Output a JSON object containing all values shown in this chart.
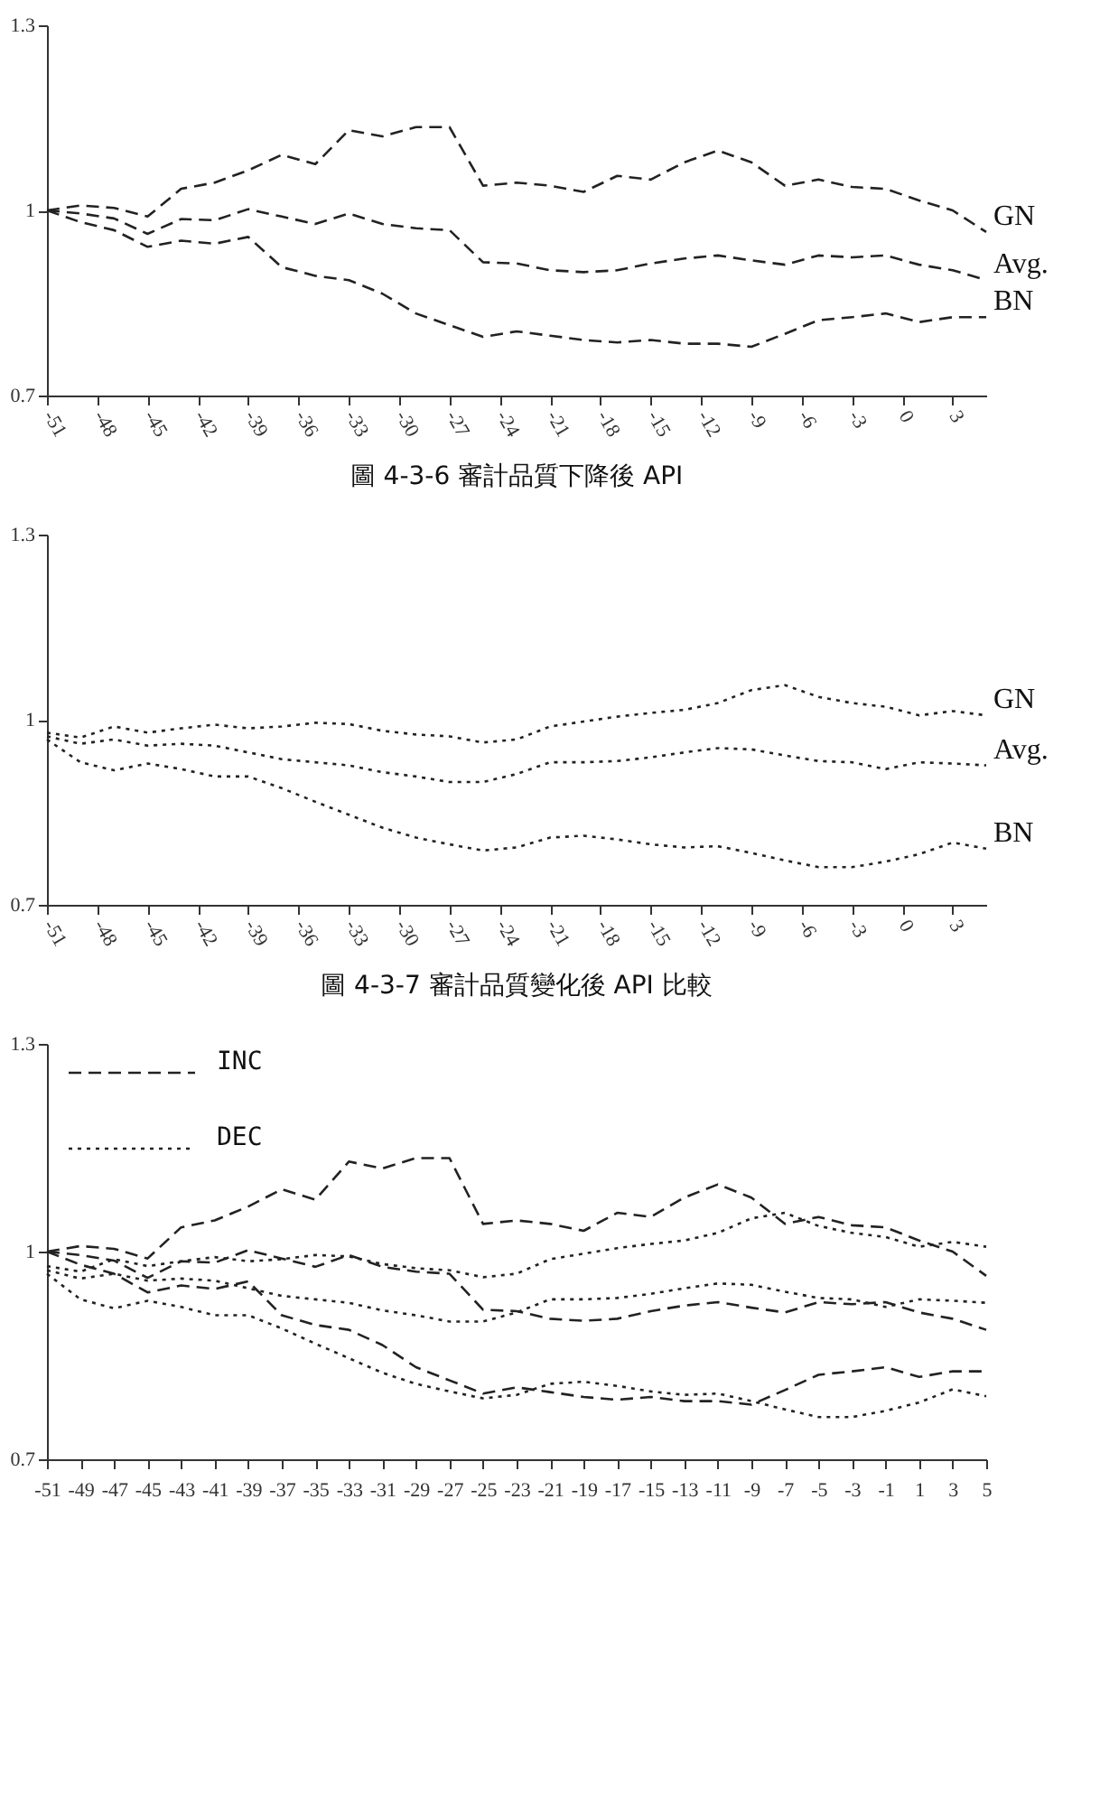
{
  "chart_data": [
    {
      "type": "line",
      "title": "圖 4-3-6 審計品質下降後 API",
      "x": [
        -51,
        -49,
        -47,
        -45,
        -43,
        -41,
        -39,
        -37,
        -35,
        -33,
        -31,
        -29,
        -27,
        -25,
        -23,
        -21,
        -19,
        -17,
        -15,
        -13,
        -11,
        -9,
        -7,
        -5,
        -3,
        -1,
        1,
        3,
        5
      ],
      "xlim": [
        -51,
        5
      ],
      "xticks": [
        -51,
        -48,
        -45,
        -42,
        -39,
        -36,
        -33,
        -30,
        -27,
        -24,
        -21,
        -18,
        -15,
        -12,
        -9,
        -6,
        -3,
        0,
        3
      ],
      "ylim": [
        0.7,
        1.3
      ],
      "yticks": [
        0.7,
        1,
        1.3
      ],
      "line_style": "dashed",
      "marker": "none",
      "grid": false,
      "series": [
        {
          "name": "GN",
          "color": "#222222",
          "values": [
            1.0,
            1.008,
            1.004,
            0.99,
            1.035,
            1.045,
            1.065,
            1.09,
            1.075,
            1.13,
            1.12,
            1.135,
            1.135,
            1.04,
            1.045,
            1.04,
            1.03,
            1.056,
            1.05,
            1.078,
            1.097,
            1.078,
            1.04,
            1.05,
            1.038,
            1.035,
            1.016,
            1.0,
            0.965
          ]
        },
        {
          "name": "Avg.",
          "color": "#222222",
          "values": [
            1.0,
            0.995,
            0.987,
            0.962,
            0.986,
            0.984,
            1.002,
            0.99,
            0.978,
            0.995,
            0.978,
            0.971,
            0.968,
            0.916,
            0.914,
            0.903,
            0.9,
            0.903,
            0.914,
            0.922,
            0.927,
            0.919,
            0.912,
            0.927,
            0.924,
            0.927,
            0.912,
            0.903,
            0.887
          ]
        },
        {
          "name": "BN",
          "color": "#222222",
          "values": [
            1.0,
            0.981,
            0.968,
            0.941,
            0.951,
            0.946,
            0.957,
            0.908,
            0.894,
            0.887,
            0.865,
            0.833,
            0.814,
            0.795,
            0.804,
            0.797,
            0.79,
            0.786,
            0.79,
            0.784,
            0.784,
            0.779,
            0.8,
            0.822,
            0.827,
            0.833,
            0.819,
            0.827,
            0.827
          ]
        }
      ]
    },
    {
      "type": "line",
      "title": "圖 4-3-7 審計品質變化後 API 比較",
      "x": [
        -51,
        -49,
        -47,
        -45,
        -43,
        -41,
        -39,
        -37,
        -35,
        -33,
        -31,
        -29,
        -27,
        -25,
        -23,
        -21,
        -19,
        -17,
        -15,
        -13,
        -11,
        -9,
        -7,
        -5,
        -3,
        -1,
        1,
        3,
        5
      ],
      "xlim": [
        -51,
        5
      ],
      "xticks": [
        -51,
        -48,
        -45,
        -42,
        -39,
        -36,
        -33,
        -30,
        -27,
        -24,
        -21,
        -18,
        -15,
        -12,
        -9,
        -6,
        -3,
        0,
        3
      ],
      "ylim": [
        0.7,
        1.3
      ],
      "yticks": [
        0.7,
        1,
        1.3
      ],
      "line_style": "dotted",
      "marker": "none",
      "grid": false,
      "series": [
        {
          "name": "GN",
          "color": "#222222",
          "values": [
            0.979,
            0.971,
            0.989,
            0.979,
            0.986,
            0.992,
            0.986,
            0.989,
            0.995,
            0.993,
            0.982,
            0.976,
            0.973,
            0.963,
            0.968,
            0.989,
            0.997,
            1.005,
            1.011,
            1.016,
            1.027,
            1.048,
            1.056,
            1.037,
            1.027,
            1.021,
            1.007,
            1.014,
            1.007
          ]
        },
        {
          "name": "Avg.",
          "color": "#222222",
          "values": [
            0.973,
            0.961,
            0.968,
            0.958,
            0.961,
            0.958,
            0.947,
            0.936,
            0.931,
            0.926,
            0.915,
            0.908,
            0.899,
            0.899,
            0.912,
            0.931,
            0.931,
            0.933,
            0.939,
            0.947,
            0.954,
            0.952,
            0.942,
            0.933,
            0.931,
            0.92,
            0.931,
            0.929,
            0.926
          ]
        },
        {
          "name": "BN",
          "color": "#222222",
          "values": [
            0.968,
            0.931,
            0.918,
            0.929,
            0.92,
            0.908,
            0.908,
            0.889,
            0.867,
            0.846,
            0.825,
            0.809,
            0.798,
            0.788,
            0.793,
            0.809,
            0.812,
            0.806,
            0.798,
            0.793,
            0.795,
            0.784,
            0.772,
            0.761,
            0.761,
            0.77,
            0.782,
            0.801,
            0.791
          ]
        }
      ]
    },
    {
      "type": "line",
      "x": [
        -51,
        -49,
        -47,
        -45,
        -43,
        -41,
        -39,
        -37,
        -35,
        -33,
        -31,
        -29,
        -27,
        -25,
        -23,
        -21,
        -19,
        -17,
        -15,
        -13,
        -11,
        -9,
        -7,
        -5,
        -3,
        -1,
        1,
        3,
        5
      ],
      "xlim": [
        -51,
        5
      ],
      "xticks": [
        -51,
        -49,
        -47,
        -45,
        -43,
        -41,
        -39,
        -37,
        -35,
        -33,
        -31,
        -29,
        -27,
        -25,
        -23,
        -21,
        -19,
        -17,
        -15,
        -13,
        -11,
        -9,
        -7,
        -5,
        -3,
        -1,
        1,
        3,
        5
      ],
      "ylim": [
        0.7,
        1.3
      ],
      "yticks": [
        0.7,
        1,
        1.3
      ],
      "marker": "none",
      "grid": false,
      "legend": "top left",
      "series": [
        {
          "name": "INC",
          "color": "#222222",
          "line_style": "dashed",
          "values": [
            1.0,
            1.008,
            1.004,
            0.99,
            1.035,
            1.045,
            1.065,
            1.09,
            1.075,
            1.13,
            1.12,
            1.135,
            1.135,
            1.04,
            1.045,
            1.04,
            1.03,
            1.056,
            1.05,
            1.078,
            1.097,
            1.078,
            1.04,
            1.05,
            1.038,
            1.035,
            1.016,
            1.0,
            0.965
          ]
        },
        {
          "color": "#222222",
          "line_style": "dashed",
          "values": [
            1.0,
            0.995,
            0.987,
            0.962,
            0.986,
            0.984,
            1.002,
            0.99,
            0.978,
            0.995,
            0.978,
            0.971,
            0.968,
            0.916,
            0.914,
            0.903,
            0.9,
            0.903,
            0.914,
            0.922,
            0.927,
            0.919,
            0.912,
            0.927,
            0.924,
            0.927,
            0.912,
            0.903,
            0.887
          ]
        },
        {
          "color": "#222222",
          "line_style": "dashed",
          "values": [
            1.0,
            0.981,
            0.968,
            0.941,
            0.951,
            0.946,
            0.957,
            0.908,
            0.894,
            0.887,
            0.865,
            0.833,
            0.814,
            0.795,
            0.804,
            0.797,
            0.79,
            0.786,
            0.79,
            0.784,
            0.784,
            0.779,
            0.8,
            0.822,
            0.827,
            0.833,
            0.819,
            0.827,
            0.827
          ]
        },
        {
          "name": "DEC",
          "color": "#222222",
          "line_style": "dotted",
          "values": [
            0.979,
            0.971,
            0.989,
            0.979,
            0.986,
            0.992,
            0.986,
            0.989,
            0.995,
            0.993,
            0.982,
            0.976,
            0.973,
            0.963,
            0.968,
            0.989,
            0.997,
            1.005,
            1.011,
            1.016,
            1.027,
            1.048,
            1.056,
            1.037,
            1.027,
            1.021,
            1.007,
            1.014,
            1.007
          ]
        },
        {
          "color": "#222222",
          "line_style": "dotted",
          "values": [
            0.973,
            0.961,
            0.968,
            0.958,
            0.961,
            0.958,
            0.947,
            0.936,
            0.931,
            0.926,
            0.915,
            0.908,
            0.899,
            0.899,
            0.912,
            0.931,
            0.931,
            0.933,
            0.939,
            0.947,
            0.954,
            0.952,
            0.942,
            0.933,
            0.931,
            0.92,
            0.931,
            0.929,
            0.926
          ]
        },
        {
          "color": "#222222",
          "line_style": "dotted",
          "values": [
            0.968,
            0.931,
            0.918,
            0.929,
            0.92,
            0.908,
            0.908,
            0.889,
            0.867,
            0.846,
            0.825,
            0.809,
            0.798,
            0.788,
            0.793,
            0.809,
            0.812,
            0.806,
            0.798,
            0.793,
            0.795,
            0.784,
            0.772,
            0.761,
            0.761,
            0.77,
            0.782,
            0.801,
            0.791
          ]
        }
      ]
    }
  ]
}
